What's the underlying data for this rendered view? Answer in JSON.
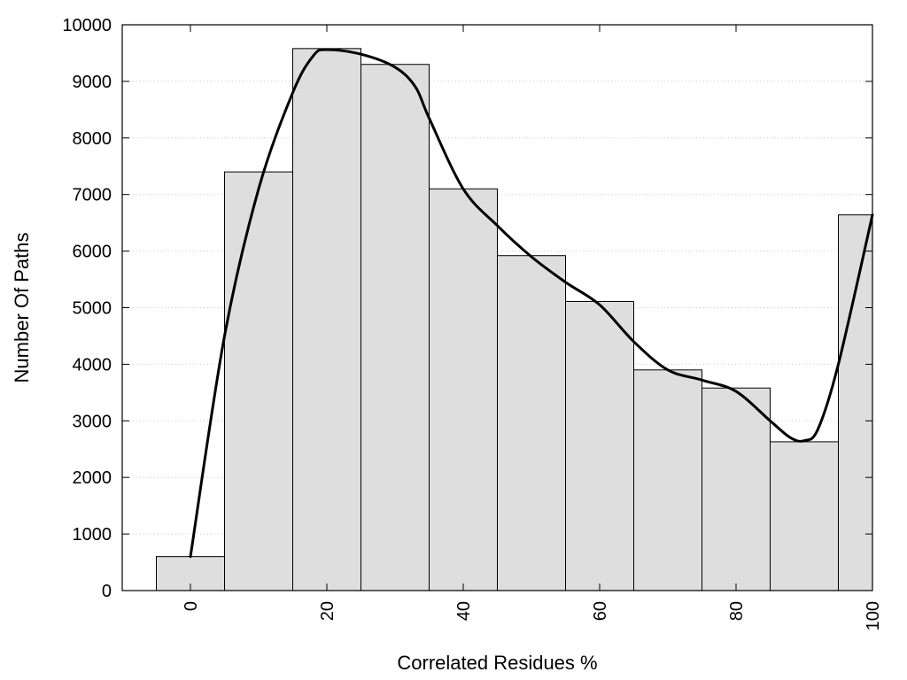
{
  "chart_data": {
    "type": "bar",
    "title": "",
    "xlabel": "Correlated Residues %",
    "ylabel": "Number Of Paths",
    "xlim": [
      -10,
      100
    ],
    "ylim": [
      0,
      10000
    ],
    "x_ticks": [
      0,
      20,
      40,
      60,
      80,
      100
    ],
    "y_ticks": [
      0,
      1000,
      2000,
      3000,
      4000,
      5000,
      6000,
      7000,
      8000,
      9000,
      10000
    ],
    "grid": "horizontal dotted",
    "bin_width": 10,
    "bars": {
      "x": [
        0,
        10,
        20,
        30,
        40,
        50,
        60,
        70,
        80,
        90,
        100
      ],
      "values": [
        600,
        7400,
        9580,
        9300,
        7100,
        5920,
        5110,
        3900,
        3580,
        2630,
        6640
      ],
      "fill": "#dedede",
      "stroke": "#000000"
    },
    "curve": {
      "type": "smooth line",
      "color": "#000000",
      "x": [
        0,
        5,
        10,
        15,
        18,
        20,
        25,
        30,
        33,
        35,
        40,
        45,
        50,
        55,
        60,
        65,
        70,
        75,
        80,
        85,
        88,
        90,
        92,
        95,
        100
      ],
      "values": [
        600,
        4500,
        7100,
        8800,
        9450,
        9560,
        9480,
        9250,
        8900,
        8350,
        7100,
        6450,
        5900,
        5450,
        5050,
        4400,
        3900,
        3720,
        3520,
        3000,
        2700,
        2650,
        2850,
        4000,
        6640
      ]
    }
  }
}
